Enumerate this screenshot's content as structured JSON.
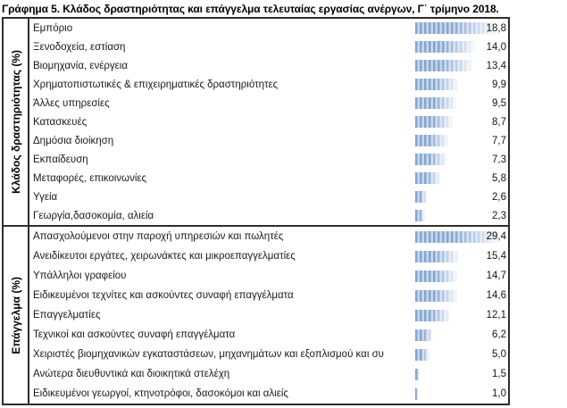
{
  "title": "Γράφημα 5. Κλάδος δραστηριότητας και επάγγελμα τελευταίας εργασίας ανέργων, Γ΄ τρίμηνο 2018.",
  "chart_data": {
    "type": "bar",
    "orientation": "horizontal",
    "grid": false,
    "legend": false,
    "value_label_position": "right-aligned-at-axis-end",
    "bar_fill": {
      "stripe_dark": "#84a6d2",
      "stripe_light": "#c8d7ec",
      "fade": "to white at right end"
    },
    "sections": [
      {
        "axis_label": "Κλάδος δραστηριότητας (%)",
        "xlim": [
          0,
          20
        ],
        "categories": [
          "Εμπόριο",
          "Ξενοδοχεία, εστίαση",
          "Βιομηχανία, ενέργεια",
          "Χρηματοπιστωτικές & επιχειρηματικές δραστηριότητες",
          "Άλλες υπηρεσίες",
          "Κατασκευές",
          "Δημόσια διοίκηση",
          "Εκπαίδευση",
          "Μεταφορές, επικοινωνίες",
          "Υγεία",
          "Γεωργία,δασοκομία, αλιεία"
        ],
        "values": [
          18.8,
          14.0,
          13.4,
          9.9,
          9.5,
          8.7,
          7.7,
          7.3,
          5.8,
          2.6,
          2.3
        ],
        "value_labels": [
          "18,8",
          "14,0",
          "13,4",
          "9,9",
          "9,5",
          "8,7",
          "7,7",
          "7,3",
          "5,8",
          "2,6",
          "2,3"
        ]
      },
      {
        "axis_label": "Επάγγελμα (%)",
        "xlim": [
          0,
          30
        ],
        "categories": [
          "Απασχολούμενοι στην παροχή υπηρεσιών και πωλητές",
          "Ανειδίκευτοι εργάτες, χειρωνάκτες και μικροεπαγγελματίες",
          "Υπάλληλοι γραφείου",
          "Ειδικευμένοι τεχνίτες και ασκούντες συναφή επαγγέλματα",
          "Επαγγελματίες",
          "Τεχνικοί και ασκούντες συναφή επαγγέλματα",
          "Χειριστές βιομηχανικών εγκαταστάσεων, μηχανημάτων και εξοπλισμού και συ",
          "Ανώτερα διευθυντικά και διοικητικά στελέχη",
          "Ειδικευμένοι γεωργοί, κτηνοτρόφοι, δασοκόμοι και αλιείς"
        ],
        "values": [
          29.4,
          15.4,
          14.7,
          14.6,
          12.1,
          6.2,
          5.0,
          1.5,
          1.0
        ],
        "value_labels": [
          "29,4",
          "15,4",
          "14,7",
          "14,6",
          "12,1",
          "6,2",
          "5,0",
          "1,5",
          "1,0"
        ]
      }
    ]
  }
}
